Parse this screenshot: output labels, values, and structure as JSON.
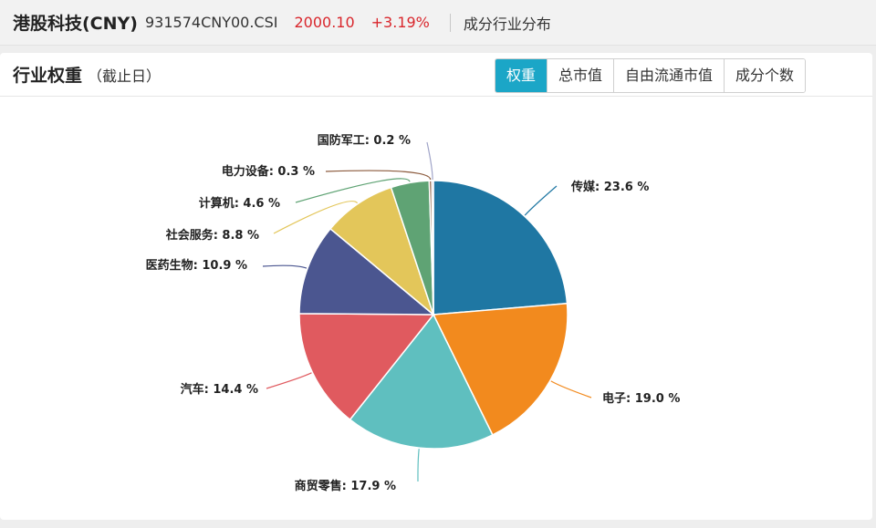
{
  "header": {
    "index_name": "港股科技(CNY)",
    "index_code": "931574CNY00.CSI",
    "price": "2000.10",
    "change": "+3.19%",
    "tab_label": "成分行业分布"
  },
  "panel": {
    "title": "行业权重",
    "subtitle": "（截止日）",
    "toggles": [
      {
        "label": "权重",
        "active": true
      },
      {
        "label": "总市值",
        "active": false
      },
      {
        "label": "自由流通市值",
        "active": false
      },
      {
        "label": "成分个数",
        "active": false
      }
    ]
  },
  "chart_data": {
    "type": "pie",
    "unit": "%",
    "slices": [
      {
        "label": "传媒",
        "value": 23.6,
        "color": "#1f77a3"
      },
      {
        "label": "电子",
        "value": 19.0,
        "color": "#f28a1e"
      },
      {
        "label": "商贸零售",
        "value": 17.9,
        "color": "#5fbfbf"
      },
      {
        "label": "汽车",
        "value": 14.4,
        "color": "#e05a5f"
      },
      {
        "label": "医药生物",
        "value": 10.9,
        "color": "#4b5690"
      },
      {
        "label": "社会服务",
        "value": 8.8,
        "color": "#e3c65a"
      },
      {
        "label": "计算机",
        "value": 4.6,
        "color": "#5fa374"
      },
      {
        "label": "电力设备",
        "value": 0.3,
        "color": "#8b5a3c"
      },
      {
        "label": "国防军工",
        "value": 0.2,
        "color": "#a0a4c8"
      }
    ]
  }
}
